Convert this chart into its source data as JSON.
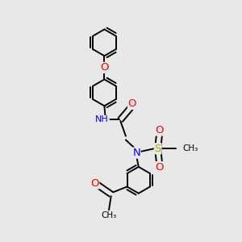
{
  "bg_color": "#e8e8e8",
  "bond_color": "#000000",
  "bond_width": 1.4,
  "dbo": 0.012,
  "atom_colors": {
    "O": "#ff0000",
    "N": "#0000ff",
    "S": "#aaaa00",
    "H": "#708090",
    "C": "#000000"
  },
  "font_size": 8.5,
  "fig_width": 3.0,
  "fig_height": 3.0,
  "dpi": 100,
  "xlim": [
    0.0,
    1.0
  ],
  "ylim": [
    0.0,
    1.0
  ]
}
